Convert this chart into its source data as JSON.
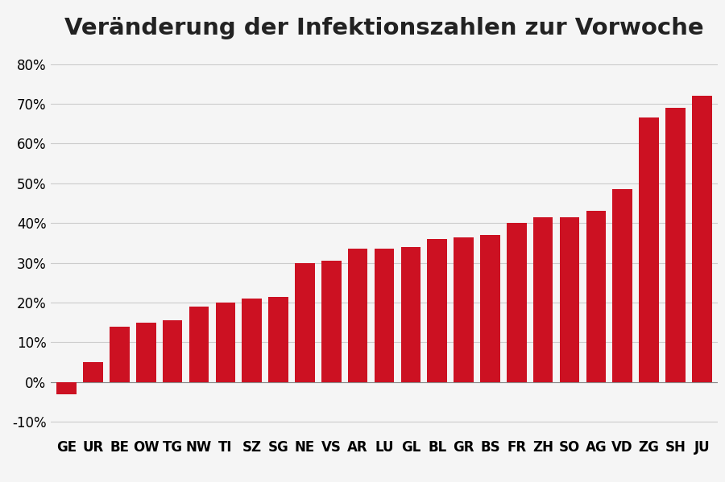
{
  "title": "Veränderung der Infektionszahlen zur Vorwoche",
  "categories": [
    "GE",
    "UR",
    "BE",
    "OW",
    "TG",
    "NW",
    "TI",
    "SZ",
    "SG",
    "NE",
    "VS",
    "AR",
    "LU",
    "GL",
    "BL",
    "GR",
    "BS",
    "FR",
    "ZH",
    "SO",
    "AG",
    "VD",
    "ZG",
    "SH",
    "JU"
  ],
  "values": [
    -3,
    5,
    14,
    15,
    15.5,
    19,
    20,
    21,
    21.5,
    30,
    30.5,
    33.5,
    33.5,
    34,
    36,
    36.5,
    37,
    40,
    41.5,
    41.5,
    43,
    48.5,
    66.5,
    69,
    72
  ],
  "bar_color": "#cc1122",
  "background_color": "#f5f5f5",
  "ylim_min": -13,
  "ylim_max": 84,
  "yticks": [
    -10,
    0,
    10,
    20,
    30,
    40,
    50,
    60,
    70,
    80
  ],
  "title_fontsize": 21,
  "tick_fontsize": 12,
  "grid_color": "#cccccc",
  "zero_line_color": "#888888",
  "bar_width": 0.75
}
